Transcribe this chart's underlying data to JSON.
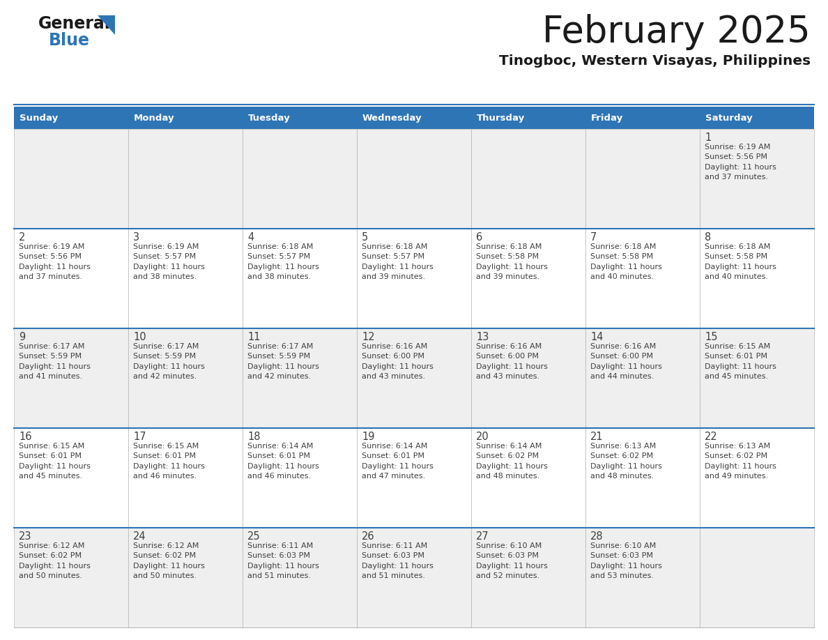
{
  "title": "February 2025",
  "subtitle": "Tinogboc, Western Visayas, Philippines",
  "days_of_week": [
    "Sunday",
    "Monday",
    "Tuesday",
    "Wednesday",
    "Thursday",
    "Friday",
    "Saturday"
  ],
  "header_bg": "#2E75B6",
  "header_text": "#FFFFFF",
  "row0_bg": "#EFEFEF",
  "row_bg_odd": "#EFEFEF",
  "row_bg_even": "#FFFFFF",
  "cell_border_color": "#AAAAAA",
  "row_sep_color": "#2E75B6",
  "day_number_color": "#404040",
  "cell_text_color": "#404040",
  "title_color": "#1A1A1A",
  "subtitle_color": "#1A1A1A",
  "logo_general_color": "#1A1A1A",
  "logo_blue_color": "#2E75B6",
  "calendar_data": [
    {
      "day": 1,
      "col": 6,
      "row": 0,
      "sunrise": "6:19 AM",
      "sunset": "5:56 PM",
      "daylight_h": "11 hours",
      "daylight_m": "and 37 minutes."
    },
    {
      "day": 2,
      "col": 0,
      "row": 1,
      "sunrise": "6:19 AM",
      "sunset": "5:56 PM",
      "daylight_h": "11 hours",
      "daylight_m": "and 37 minutes."
    },
    {
      "day": 3,
      "col": 1,
      "row": 1,
      "sunrise": "6:19 AM",
      "sunset": "5:57 PM",
      "daylight_h": "11 hours",
      "daylight_m": "and 38 minutes."
    },
    {
      "day": 4,
      "col": 2,
      "row": 1,
      "sunrise": "6:18 AM",
      "sunset": "5:57 PM",
      "daylight_h": "11 hours",
      "daylight_m": "and 38 minutes."
    },
    {
      "day": 5,
      "col": 3,
      "row": 1,
      "sunrise": "6:18 AM",
      "sunset": "5:57 PM",
      "daylight_h": "11 hours",
      "daylight_m": "and 39 minutes."
    },
    {
      "day": 6,
      "col": 4,
      "row": 1,
      "sunrise": "6:18 AM",
      "sunset": "5:58 PM",
      "daylight_h": "11 hours",
      "daylight_m": "and 39 minutes."
    },
    {
      "day": 7,
      "col": 5,
      "row": 1,
      "sunrise": "6:18 AM",
      "sunset": "5:58 PM",
      "daylight_h": "11 hours",
      "daylight_m": "and 40 minutes."
    },
    {
      "day": 8,
      "col": 6,
      "row": 1,
      "sunrise": "6:18 AM",
      "sunset": "5:58 PM",
      "daylight_h": "11 hours",
      "daylight_m": "and 40 minutes."
    },
    {
      "day": 9,
      "col": 0,
      "row": 2,
      "sunrise": "6:17 AM",
      "sunset": "5:59 PM",
      "daylight_h": "11 hours",
      "daylight_m": "and 41 minutes."
    },
    {
      "day": 10,
      "col": 1,
      "row": 2,
      "sunrise": "6:17 AM",
      "sunset": "5:59 PM",
      "daylight_h": "11 hours",
      "daylight_m": "and 42 minutes."
    },
    {
      "day": 11,
      "col": 2,
      "row": 2,
      "sunrise": "6:17 AM",
      "sunset": "5:59 PM",
      "daylight_h": "11 hours",
      "daylight_m": "and 42 minutes."
    },
    {
      "day": 12,
      "col": 3,
      "row": 2,
      "sunrise": "6:16 AM",
      "sunset": "6:00 PM",
      "daylight_h": "11 hours",
      "daylight_m": "and 43 minutes."
    },
    {
      "day": 13,
      "col": 4,
      "row": 2,
      "sunrise": "6:16 AM",
      "sunset": "6:00 PM",
      "daylight_h": "11 hours",
      "daylight_m": "and 43 minutes."
    },
    {
      "day": 14,
      "col": 5,
      "row": 2,
      "sunrise": "6:16 AM",
      "sunset": "6:00 PM",
      "daylight_h": "11 hours",
      "daylight_m": "and 44 minutes."
    },
    {
      "day": 15,
      "col": 6,
      "row": 2,
      "sunrise": "6:15 AM",
      "sunset": "6:01 PM",
      "daylight_h": "11 hours",
      "daylight_m": "and 45 minutes."
    },
    {
      "day": 16,
      "col": 0,
      "row": 3,
      "sunrise": "6:15 AM",
      "sunset": "6:01 PM",
      "daylight_h": "11 hours",
      "daylight_m": "and 45 minutes."
    },
    {
      "day": 17,
      "col": 1,
      "row": 3,
      "sunrise": "6:15 AM",
      "sunset": "6:01 PM",
      "daylight_h": "11 hours",
      "daylight_m": "and 46 minutes."
    },
    {
      "day": 18,
      "col": 2,
      "row": 3,
      "sunrise": "6:14 AM",
      "sunset": "6:01 PM",
      "daylight_h": "11 hours",
      "daylight_m": "and 46 minutes."
    },
    {
      "day": 19,
      "col": 3,
      "row": 3,
      "sunrise": "6:14 AM",
      "sunset": "6:01 PM",
      "daylight_h": "11 hours",
      "daylight_m": "and 47 minutes."
    },
    {
      "day": 20,
      "col": 4,
      "row": 3,
      "sunrise": "6:14 AM",
      "sunset": "6:02 PM",
      "daylight_h": "11 hours",
      "daylight_m": "and 48 minutes."
    },
    {
      "day": 21,
      "col": 5,
      "row": 3,
      "sunrise": "6:13 AM",
      "sunset": "6:02 PM",
      "daylight_h": "11 hours",
      "daylight_m": "and 48 minutes."
    },
    {
      "day": 22,
      "col": 6,
      "row": 3,
      "sunrise": "6:13 AM",
      "sunset": "6:02 PM",
      "daylight_h": "11 hours",
      "daylight_m": "and 49 minutes."
    },
    {
      "day": 23,
      "col": 0,
      "row": 4,
      "sunrise": "6:12 AM",
      "sunset": "6:02 PM",
      "daylight_h": "11 hours",
      "daylight_m": "and 50 minutes."
    },
    {
      "day": 24,
      "col": 1,
      "row": 4,
      "sunrise": "6:12 AM",
      "sunset": "6:02 PM",
      "daylight_h": "11 hours",
      "daylight_m": "and 50 minutes."
    },
    {
      "day": 25,
      "col": 2,
      "row": 4,
      "sunrise": "6:11 AM",
      "sunset": "6:03 PM",
      "daylight_h": "11 hours",
      "daylight_m": "and 51 minutes."
    },
    {
      "day": 26,
      "col": 3,
      "row": 4,
      "sunrise": "6:11 AM",
      "sunset": "6:03 PM",
      "daylight_h": "11 hours",
      "daylight_m": "and 51 minutes."
    },
    {
      "day": 27,
      "col": 4,
      "row": 4,
      "sunrise": "6:10 AM",
      "sunset": "6:03 PM",
      "daylight_h": "11 hours",
      "daylight_m": "and 52 minutes."
    },
    {
      "day": 28,
      "col": 5,
      "row": 4,
      "sunrise": "6:10 AM",
      "sunset": "6:03 PM",
      "daylight_h": "11 hours",
      "daylight_m": "and 53 minutes."
    }
  ],
  "fig_width": 11.88,
  "fig_height": 9.18,
  "dpi": 100
}
